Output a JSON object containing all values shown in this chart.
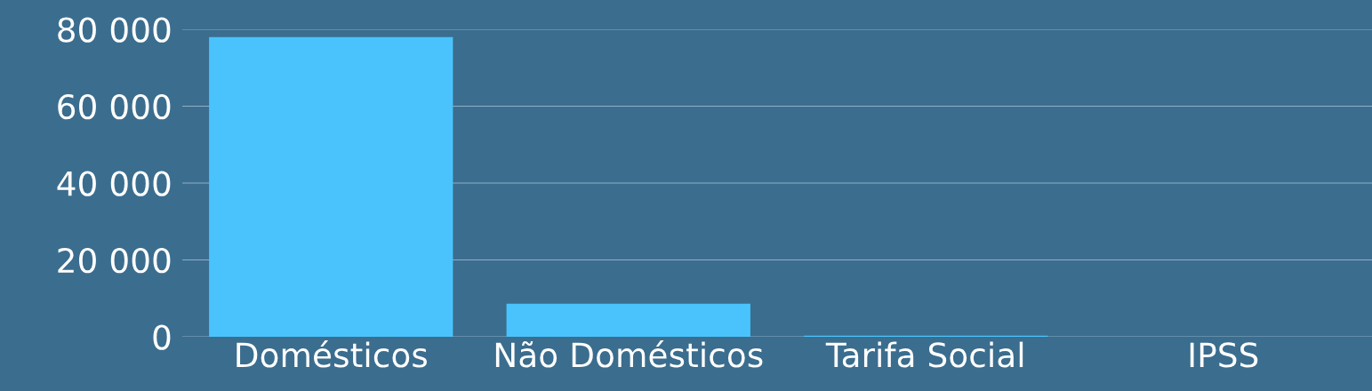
{
  "chart_data": {
    "type": "bar",
    "categories": [
      "Domésticos",
      "Não Domésticos",
      "Tarifa Social",
      "IPSS"
    ],
    "values": [
      78000,
      8600,
      300,
      0
    ],
    "color": "#4ac3fd",
    "ylim": [
      0,
      80000
    ],
    "yticks": [
      {
        "value": 0,
        "label": "0"
      },
      {
        "value": 20000,
        "label": "20 000"
      },
      {
        "value": 40000,
        "label": "40 000"
      },
      {
        "value": 60000,
        "label": "60 000"
      },
      {
        "value": 80000,
        "label": "80 000"
      }
    ],
    "grid": "y"
  }
}
